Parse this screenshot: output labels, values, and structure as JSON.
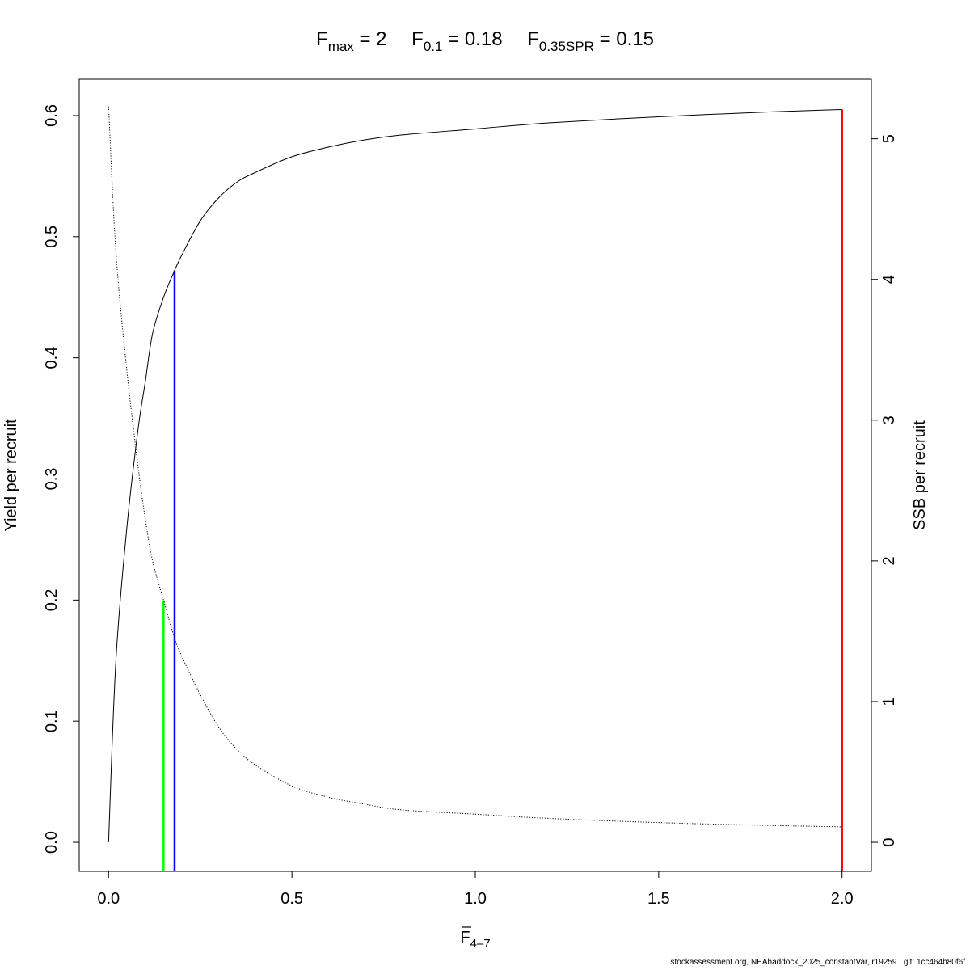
{
  "chart_data": {
    "type": "line",
    "title_parts": [
      {
        "main": "F",
        "sub": "max",
        "eq": "= 2"
      },
      {
        "main": "F",
        "sub": "0.1",
        "eq": "= 0.18"
      },
      {
        "main": "F",
        "sub": "0.35SPR",
        "eq": "= 0.15"
      }
    ],
    "xlabel": {
      "main": "F",
      "sub": "4–7",
      "overbar": true
    },
    "ylabel_left": "Yield per recruit",
    "ylabel_right": "SSB per recruit",
    "xlim": [
      -0.08,
      2.08
    ],
    "ylim_left": [
      -0.024,
      0.63
    ],
    "ylim_right": [
      -0.2066,
      5.423
    ],
    "x_ticks": [
      "0.0",
      "0.5",
      "1.0",
      "1.5",
      "2.0"
    ],
    "y_left_ticks": [
      "0.0",
      "0.1",
      "0.2",
      "0.3",
      "0.4",
      "0.5",
      "0.6"
    ],
    "y_right_ticks": [
      "0",
      "1",
      "2",
      "3",
      "4",
      "5"
    ],
    "grid": false,
    "series": [
      {
        "axis": "left",
        "style": "solid",
        "x": [
          0,
          0.02,
          0.05,
          0.08,
          0.1,
          0.12,
          0.15,
          0.18,
          0.2,
          0.25,
          0.3,
          0.35,
          0.4,
          0.5,
          0.6,
          0.7,
          0.8,
          1.0,
          1.2,
          1.5,
          1.8,
          2.0
        ],
        "values": [
          0,
          0.15,
          0.26,
          0.34,
          0.38,
          0.42,
          0.45,
          0.472,
          0.485,
          0.513,
          0.532,
          0.545,
          0.553,
          0.566,
          0.574,
          0.58,
          0.584,
          0.589,
          0.594,
          0.599,
          0.603,
          0.605
        ]
      },
      {
        "axis": "right",
        "style": "dotted",
        "x": [
          0,
          0.02,
          0.05,
          0.08,
          0.1,
          0.12,
          0.15,
          0.18,
          0.2,
          0.25,
          0.3,
          0.35,
          0.4,
          0.5,
          0.6,
          0.7,
          0.8,
          1.0,
          1.2,
          1.5,
          1.8,
          2.0
        ],
        "values": [
          5.23,
          4.2,
          3.35,
          2.68,
          2.3,
          2.0,
          1.72,
          1.45,
          1.32,
          1.05,
          0.82,
          0.66,
          0.55,
          0.4,
          0.32,
          0.27,
          0.23,
          0.2,
          0.17,
          0.14,
          0.12,
          0.11
        ]
      }
    ],
    "reference_lines": [
      {
        "x": 0.15,
        "y_left": 0.199,
        "color": "#00ff00"
      },
      {
        "x": 0.18,
        "y_left": 0.472,
        "color": "#0000ff"
      },
      {
        "x": 2.0,
        "y_left": 0.605,
        "color": "#ff0000"
      }
    ]
  },
  "footer": "stockassessment.org, NEAhaddock_2025_constantVar, r19259 , git: 1cc464b80f6f"
}
